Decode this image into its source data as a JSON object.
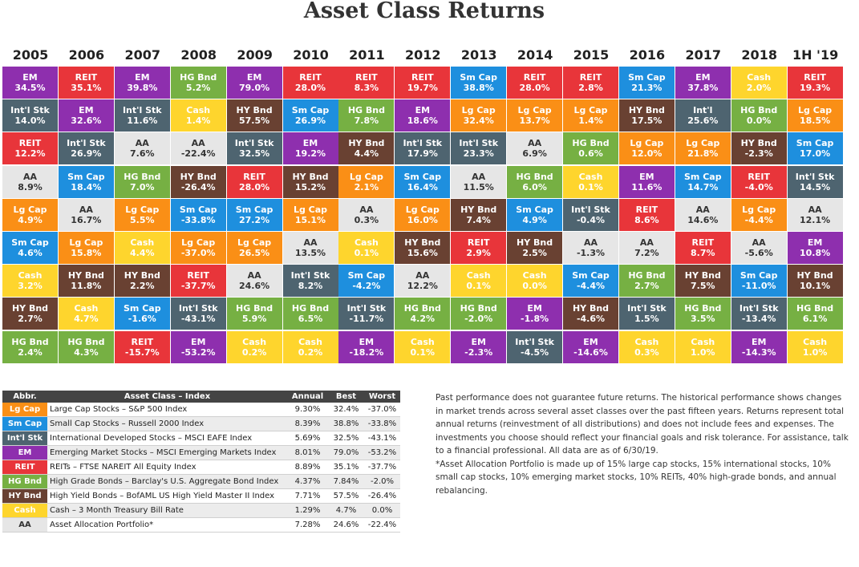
{
  "title": "Asset Class Returns",
  "colors": {
    "EM": "#8e2fae",
    "REIT": "#e8353a",
    "HG Bnd": "#76b043",
    "Sm Cap": "#1e8fde",
    "Cash": "#fed52d",
    "Int'l Stk": "#4e6470",
    "Lg Cap": "#fa8f16",
    "AA": "#e6e6e6",
    "HY Bnd": "#694132"
  },
  "chart_data": {
    "type": "table",
    "title": "Asset Class Returns",
    "years": [
      "2005",
      "2006",
      "2007",
      "2008",
      "2009",
      "2010",
      "2011",
      "2012",
      "2013",
      "2014",
      "2015",
      "2016",
      "2017",
      "2018",
      "1H '19"
    ],
    "columns": [
      [
        [
          "EM",
          "34.5%"
        ],
        [
          "Int'l Stk",
          "14.0%"
        ],
        [
          "REIT",
          "12.2%"
        ],
        [
          "AA",
          "8.9%"
        ],
        [
          "Lg Cap",
          "4.9%"
        ],
        [
          "Sm Cap",
          "4.6%"
        ],
        [
          "Cash",
          "3.2%"
        ],
        [
          "HY Bnd",
          "2.7%"
        ],
        [
          "HG Bnd",
          "2.4%"
        ]
      ],
      [
        [
          "REIT",
          "35.1%"
        ],
        [
          "EM",
          "32.6%"
        ],
        [
          "Int'l Stk",
          "26.9%"
        ],
        [
          "Sm Cap",
          "18.4%"
        ],
        [
          "AA",
          "16.7%"
        ],
        [
          "Lg Cap",
          "15.8%"
        ],
        [
          "HY Bnd",
          "11.8%"
        ],
        [
          "Cash",
          "4.7%"
        ],
        [
          "HG Bnd",
          "4.3%"
        ]
      ],
      [
        [
          "EM",
          "39.8%"
        ],
        [
          "Int'l Stk",
          "11.6%"
        ],
        [
          "AA",
          "7.6%"
        ],
        [
          "HG Bnd",
          "7.0%"
        ],
        [
          "Lg Cap",
          "5.5%"
        ],
        [
          "Cash",
          "4.4%"
        ],
        [
          "HY Bnd",
          "2.2%"
        ],
        [
          "Sm Cap",
          "-1.6%"
        ],
        [
          "REIT",
          "-15.7%"
        ]
      ],
      [
        [
          "HG Bnd",
          "5.2%"
        ],
        [
          "Cash",
          "1.4%"
        ],
        [
          "AA",
          "-22.4%"
        ],
        [
          "HY Bnd",
          "-26.4%"
        ],
        [
          "Sm Cap",
          "-33.8%"
        ],
        [
          "Lg Cap",
          "-37.0%"
        ],
        [
          "REIT",
          "-37.7%"
        ],
        [
          "Int'l Stk",
          "-43.1%"
        ],
        [
          "EM",
          "-53.2%"
        ]
      ],
      [
        [
          "EM",
          "79.0%"
        ],
        [
          "HY Bnd",
          "57.5%"
        ],
        [
          "Int'l Stk",
          "32.5%"
        ],
        [
          "REIT",
          "28.0%"
        ],
        [
          "Sm Cap",
          "27.2%"
        ],
        [
          "Lg Cap",
          "26.5%"
        ],
        [
          "AA",
          "24.6%"
        ],
        [
          "HG Bnd",
          "5.9%"
        ],
        [
          "Cash",
          "0.2%"
        ]
      ],
      [
        [
          "REIT",
          "28.0%"
        ],
        [
          "Sm Cap",
          "26.9%"
        ],
        [
          "EM",
          "19.2%"
        ],
        [
          "HY Bnd",
          "15.2%"
        ],
        [
          "Lg Cap",
          "15.1%"
        ],
        [
          "AA",
          "13.5%"
        ],
        [
          "Int'l Stk",
          "8.2%"
        ],
        [
          "HG Bnd",
          "6.5%"
        ],
        [
          "Cash",
          "0.2%"
        ]
      ],
      [
        [
          "REIT",
          "8.3%"
        ],
        [
          "HG Bnd",
          "7.8%"
        ],
        [
          "HY Bnd",
          "4.4%"
        ],
        [
          "Lg Cap",
          "2.1%"
        ],
        [
          "AA",
          "0.3%"
        ],
        [
          "Cash",
          "0.1%"
        ],
        [
          "Sm Cap",
          "-4.2%"
        ],
        [
          "Int'l Stk",
          "-11.7%"
        ],
        [
          "EM",
          "-18.2%"
        ]
      ],
      [
        [
          "REIT",
          "19.7%"
        ],
        [
          "EM",
          "18.6%"
        ],
        [
          "Int'l Stk",
          "17.9%"
        ],
        [
          "Sm Cap",
          "16.4%"
        ],
        [
          "Lg Cap",
          "16.0%"
        ],
        [
          "HY Bnd",
          "15.6%"
        ],
        [
          "AA",
          "12.2%"
        ],
        [
          "HG Bnd",
          "4.2%"
        ],
        [
          "Cash",
          "0.1%"
        ]
      ],
      [
        [
          "Sm Cap",
          "38.8%"
        ],
        [
          "Lg Cap",
          "32.4%"
        ],
        [
          "Int'l Stk",
          "23.3%"
        ],
        [
          "AA",
          "11.5%"
        ],
        [
          "HY Bnd",
          "7.4%"
        ],
        [
          "REIT",
          "2.9%"
        ],
        [
          "Cash",
          "0.1%"
        ],
        [
          "HG Bnd",
          "-2.0%"
        ],
        [
          "EM",
          "-2.3%"
        ]
      ],
      [
        [
          "REIT",
          "28.0%"
        ],
        [
          "Lg Cap",
          "13.7%"
        ],
        [
          "AA",
          "6.9%"
        ],
        [
          "HG Bnd",
          "6.0%"
        ],
        [
          "Sm Cap",
          "4.9%"
        ],
        [
          "HY Bnd",
          "2.5%"
        ],
        [
          "Cash",
          "0.0%"
        ],
        [
          "EM",
          "-1.8%"
        ],
        [
          "Int'l Stk",
          "-4.5%"
        ]
      ],
      [
        [
          "REIT",
          "2.8%"
        ],
        [
          "Lg Cap",
          "1.4%"
        ],
        [
          "HG Bnd",
          "0.6%"
        ],
        [
          "Cash",
          "0.1%"
        ],
        [
          "Int'l Stk",
          "-0.4%"
        ],
        [
          "AA",
          "-1.3%"
        ],
        [
          "Sm Cap",
          "-4.4%"
        ],
        [
          "HY Bnd",
          "-4.6%"
        ],
        [
          "EM",
          "-14.6%"
        ]
      ],
      [
        [
          "Sm Cap",
          "21.3%"
        ],
        [
          "HY Bnd",
          "17.5%"
        ],
        [
          "Lg Cap",
          "12.0%"
        ],
        [
          "EM",
          "11.6%"
        ],
        [
          "REIT",
          "8.6%"
        ],
        [
          "AA",
          "7.2%"
        ],
        [
          "HG Bnd",
          "2.7%"
        ],
        [
          "Int'l Stk",
          "1.5%"
        ],
        [
          "Cash",
          "0.3%"
        ]
      ],
      [
        [
          "EM",
          "37.8%"
        ],
        [
          "Int'l",
          "25.6%"
        ],
        [
          "Lg Cap",
          "21.8%"
        ],
        [
          "Sm Cap",
          "14.7%"
        ],
        [
          "AA",
          "14.6%"
        ],
        [
          "REIT",
          "8.7%"
        ],
        [
          "HY Bnd",
          "7.5%"
        ],
        [
          "HG Bnd",
          "3.5%"
        ],
        [
          "Cash",
          "1.0%"
        ]
      ],
      [
        [
          "Cash",
          "2.0%"
        ],
        [
          "HG Bnd",
          "0.0%"
        ],
        [
          "HY Bnd",
          "-2.3%"
        ],
        [
          "REIT",
          "-4.0%"
        ],
        [
          "Lg Cap",
          "-4.4%"
        ],
        [
          "AA",
          "-5.6%"
        ],
        [
          "Sm Cap",
          "-11.0%"
        ],
        [
          "Int'l Stk",
          "-13.4%"
        ],
        [
          "EM",
          "-14.3%"
        ]
      ],
      [
        [
          "REIT",
          "19.3%"
        ],
        [
          "Lg Cap",
          "18.5%"
        ],
        [
          "Sm Cap",
          "17.0%"
        ],
        [
          "Int'l Stk",
          "14.5%"
        ],
        [
          "AA",
          "12.1%"
        ],
        [
          "EM",
          "10.8%"
        ],
        [
          "HY Bnd",
          "10.1%"
        ],
        [
          "HG Bnd",
          "6.1%"
        ],
        [
          "Cash",
          "1.0%"
        ]
      ]
    ]
  },
  "legend": {
    "headers": [
      "Abbr.",
      "Asset Class – Index",
      "Annual",
      "Best",
      "Worst"
    ],
    "rows": [
      {
        "key": "Lg Cap",
        "abbr": "Lg Cap",
        "desc": "Large Cap Stocks – S&P 500 Index",
        "annual": "9.30%",
        "best": "32.4%",
        "worst": "-37.0%"
      },
      {
        "key": "Sm Cap",
        "abbr": "Sm Cap",
        "desc": "Small Cap Stocks – Russell 2000 Index",
        "annual": "8.39%",
        "best": "38.8%",
        "worst": "-33.8%"
      },
      {
        "key": "Int'l Stk",
        "abbr": "Int'l Stk",
        "desc": "International Developed Stocks – MSCI EAFE Index",
        "annual": "5.69%",
        "best": "32.5%",
        "worst": "-43.1%"
      },
      {
        "key": "EM",
        "abbr": "EM",
        "desc": "Emerging Market Stocks – MSCI Emerging Markets Index",
        "annual": "8.01%",
        "best": "79.0%",
        "worst": "-53.2%"
      },
      {
        "key": "REIT",
        "abbr": "REIT",
        "desc": "REITs – FTSE NAREIT All Equity Index",
        "annual": "8.89%",
        "best": "35.1%",
        "worst": "-37.7%"
      },
      {
        "key": "HG Bnd",
        "abbr": "HG Bnd",
        "desc": "High Grade Bonds – Barclay's U.S. Aggregate Bond Index",
        "annual": "4.37%",
        "best": "7.84%",
        "worst": "-2.0%"
      },
      {
        "key": "HY Bnd",
        "abbr": "HY Bnd",
        "desc": "High Yield Bonds – BofAML US High Yield Master II Index",
        "annual": "7.71%",
        "best": "57.5%",
        "worst": "-26.4%"
      },
      {
        "key": "Cash",
        "abbr": "Cash",
        "desc": "Cash – 3 Month Treasury Bill Rate",
        "annual": "1.29%",
        "best": "4.7%",
        "worst": "0.0%"
      },
      {
        "key": "AA",
        "abbr": "AA",
        "desc": "Asset Allocation Portfolio*",
        "annual": "7.28%",
        "best": "24.6%",
        "worst": "-22.4%"
      }
    ]
  },
  "notes": {
    "disclaimer": "Past performance does not guarantee future returns. The historical performance shows changes in market trends across several asset classes over the past fifteen years. Returns represent total annual returns (reinvestment of all distributions) and does not include fees and expenses. The investments you choose should reflect your financial goals and risk tolerance. For assistance, talk to a financial professional. All data are as of 6/30/19.",
    "footnote": "*Asset Allocation Portfolio is made up of 15% large cap stocks, 15% international stocks, 10% small cap stocks, 10% emerging market stocks, 10% REITs, 40% high-grade bonds, and annual rebalancing."
  }
}
